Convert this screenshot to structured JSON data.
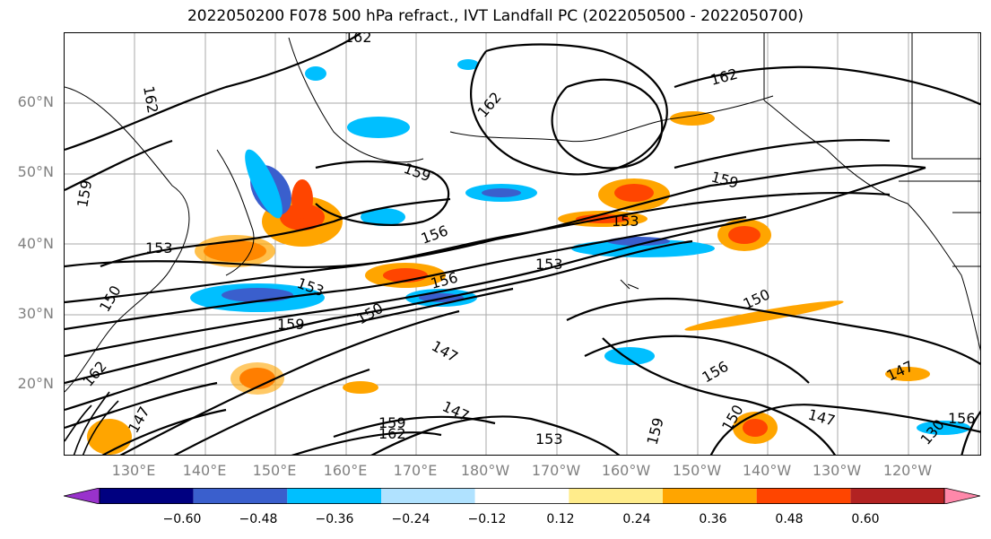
{
  "title": "2022050200 F078 500 hPa refract., IVT Landfall PC (2022050500 - 2022050700)",
  "map": {
    "lat_labels": [
      "60°N",
      "50°N",
      "40°N",
      "30°N",
      "20°N"
    ],
    "lon_labels": [
      "130°E",
      "140°E",
      "150°E",
      "160°E",
      "170°E",
      "180°W",
      "170°W",
      "160°W",
      "150°W",
      "140°W",
      "130°W",
      "120°W"
    ],
    "contour_labels": [
      "162",
      "162",
      "162",
      "162",
      "159",
      "159",
      "159",
      "159",
      "159",
      "156",
      "156",
      "156",
      "156",
      "153",
      "153",
      "153",
      "153",
      "153",
      "150",
      "150",
      "150",
      "150",
      "147",
      "147",
      "147",
      "147",
      "130"
    ]
  },
  "colorbar": {
    "colors": [
      "#9932cc",
      "#000080",
      "#3a5fcd",
      "#00bfff",
      "#b0e2ff",
      "#ffffff",
      "#ffec8b",
      "#ffa500",
      "#ff4500",
      "#b22222",
      "#ff88aa"
    ],
    "tick_labels": [
      "−0.60",
      "−0.48",
      "−0.36",
      "−0.24",
      "−0.12",
      "0.12",
      "0.24",
      "0.36",
      "0.48",
      "0.60"
    ]
  }
}
